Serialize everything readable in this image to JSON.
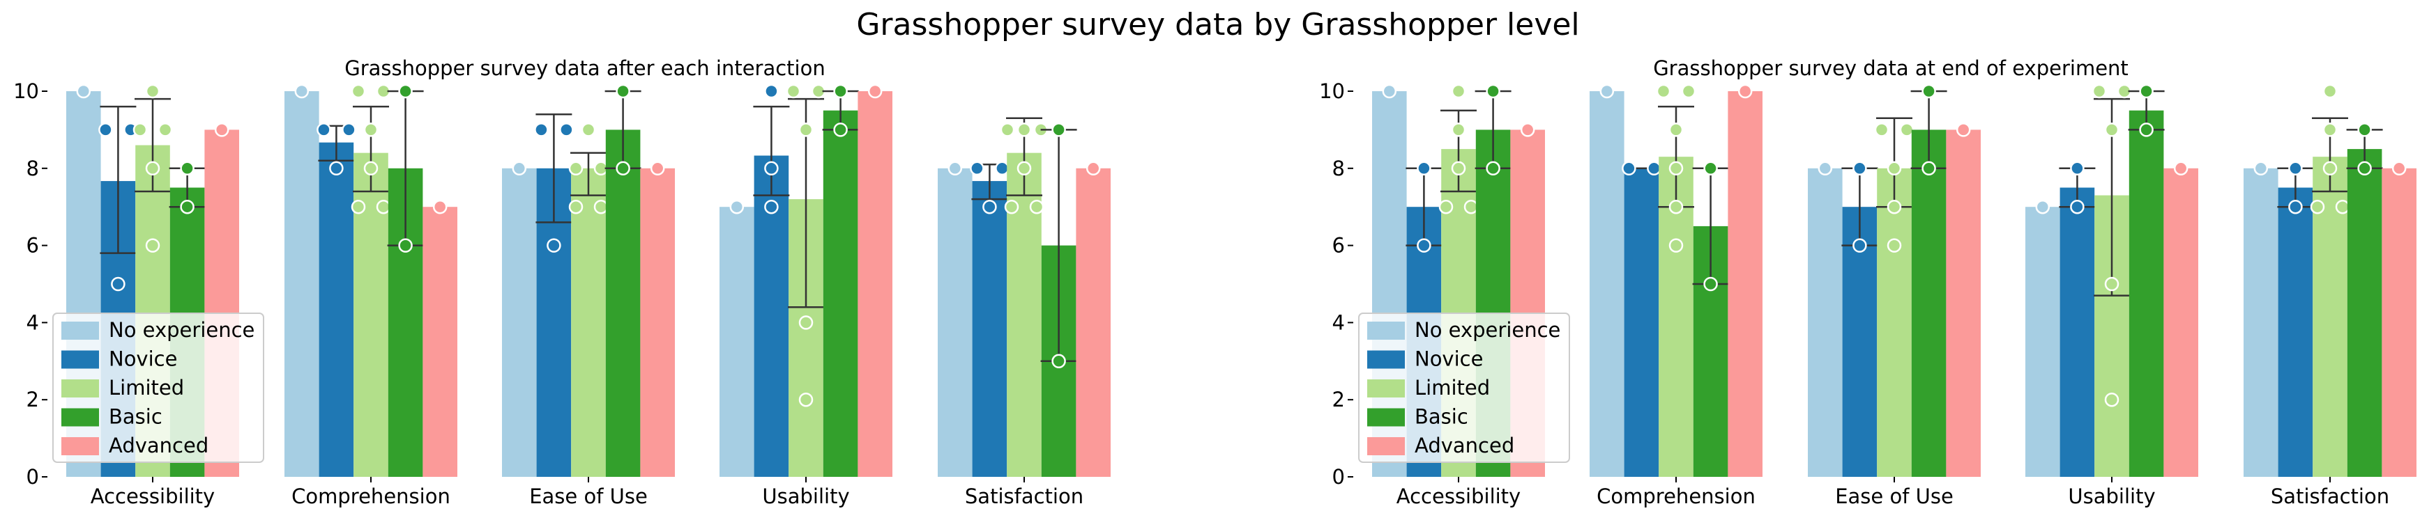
{
  "title": "Grasshopper survey data by Grasshopper level",
  "colors": {
    "No experience": "#a6cee3",
    "Novice": "#1f78b4",
    "Limited": "#b2df8a",
    "Basic": "#33a02c",
    "Advanced": "#fb9a99"
  },
  "chart_data": [
    {
      "type": "bar",
      "title": "Grasshopper survey data after each interaction",
      "categories": [
        "Accessibility",
        "Comprehension",
        "Ease of Use",
        "Usability",
        "Satisfaction"
      ],
      "ylim": [
        0,
        10
      ],
      "yticks": [
        "0",
        "2",
        "4",
        "6",
        "8",
        "10"
      ],
      "legend": "lower-left",
      "grid": false,
      "series": [
        {
          "name": "No experience",
          "values": [
            10,
            10,
            8,
            7,
            8
          ],
          "err": [
            null,
            null,
            null,
            null,
            null
          ],
          "points": [
            [
              10
            ],
            [
              10
            ],
            [
              8
            ],
            [
              7
            ],
            [
              8
            ]
          ]
        },
        {
          "name": "Novice",
          "values": [
            7.67,
            8.67,
            8,
            8.33,
            7.67
          ],
          "err": [
            [
              5.8,
              9.6
            ],
            [
              8.2,
              9.1
            ],
            [
              6.6,
              9.4
            ],
            [
              7.3,
              9.6
            ],
            [
              7.2,
              8.1
            ]
          ],
          "points": [
            [
              9,
              9,
              5
            ],
            [
              9,
              9,
              8
            ],
            [
              9,
              9,
              6
            ],
            [
              10,
              8,
              7
            ],
            [
              8,
              8,
              7
            ]
          ]
        },
        {
          "name": "Limited",
          "values": [
            8.6,
            8.4,
            8,
            7.2,
            8.4
          ],
          "err": [
            [
              7.4,
              9.8
            ],
            [
              7.4,
              9.6
            ],
            [
              7.3,
              8.4
            ],
            [
              4.4,
              9.8
            ],
            [
              7.3,
              9.3
            ]
          ],
          "points": [
            [
              10,
              9,
              9,
              8,
              6
            ],
            [
              10,
              10,
              9,
              8,
              7,
              7
            ],
            [
              9,
              8,
              8,
              7,
              7
            ],
            [
              10,
              10,
              9,
              4,
              2
            ],
            [
              9,
              9,
              9,
              8,
              7,
              7
            ]
          ]
        },
        {
          "name": "Basic",
          "values": [
            7.5,
            8,
            9,
            9.5,
            6
          ],
          "err": [
            [
              7,
              8
            ],
            [
              6,
              10
            ],
            [
              8,
              10
            ],
            [
              9,
              10
            ],
            [
              3,
              9
            ]
          ],
          "points": [
            [
              8,
              7
            ],
            [
              10,
              6
            ],
            [
              10,
              8
            ],
            [
              10,
              9
            ],
            [
              9,
              3
            ]
          ]
        },
        {
          "name": "Advanced",
          "values": [
            9,
            7,
            8,
            10,
            8
          ],
          "err": [
            null,
            null,
            null,
            null,
            null
          ],
          "points": [
            [
              9
            ],
            [
              7
            ],
            [
              8
            ],
            [
              10
            ],
            [
              8
            ]
          ]
        }
      ]
    },
    {
      "type": "bar",
      "title": "Grasshopper survey data at end of experiment",
      "categories": [
        "Accessibility",
        "Comprehension",
        "Ease of Use",
        "Usability",
        "Satisfaction"
      ],
      "ylim": [
        0,
        10
      ],
      "yticks": [
        "0",
        "2",
        "4",
        "6",
        "8",
        "10"
      ],
      "legend": "lower-left",
      "grid": false,
      "series": [
        {
          "name": "No experience",
          "values": [
            10,
            10,
            8,
            7,
            8
          ],
          "err": [
            null,
            null,
            null,
            null,
            null
          ],
          "points": [
            [
              10
            ],
            [
              10
            ],
            [
              8
            ],
            [
              7
            ],
            [
              8
            ]
          ]
        },
        {
          "name": "Novice",
          "values": [
            7,
            8,
            7,
            7.5,
            7.5
          ],
          "err": [
            [
              6,
              8
            ],
            [
              8,
              8
            ],
            [
              6,
              8
            ],
            [
              7,
              8
            ],
            [
              7,
              8
            ]
          ],
          "points": [
            [
              8,
              6
            ],
            [
              8,
              8
            ],
            [
              8,
              6
            ],
            [
              8,
              7
            ],
            [
              8,
              7
            ]
          ]
        },
        {
          "name": "Limited",
          "values": [
            8.5,
            8.3,
            8,
            7.3,
            8.3
          ],
          "err": [
            [
              7.4,
              9.5
            ],
            [
              7,
              9.6
            ],
            [
              7,
              9.3
            ],
            [
              4.7,
              9.8
            ],
            [
              7.4,
              9.3
            ]
          ],
          "points": [
            [
              10,
              9,
              8,
              7,
              7
            ],
            [
              10,
              10,
              9,
              8,
              7,
              6
            ],
            [
              9,
              9,
              8,
              7,
              6
            ],
            [
              10,
              10,
              9,
              5,
              2
            ],
            [
              10,
              9,
              8,
              7,
              7
            ]
          ]
        },
        {
          "name": "Basic",
          "values": [
            9,
            6.5,
            9,
            9.5,
            8.5
          ],
          "err": [
            [
              8,
              10
            ],
            [
              5,
              8
            ],
            [
              8,
              10
            ],
            [
              9,
              10
            ],
            [
              8,
              9
            ]
          ],
          "points": [
            [
              10,
              8
            ],
            [
              8,
              5
            ],
            [
              10,
              8
            ],
            [
              10,
              9
            ],
            [
              9,
              8
            ]
          ]
        },
        {
          "name": "Advanced",
          "values": [
            9,
            10,
            9,
            8,
            8
          ],
          "err": [
            null,
            null,
            null,
            null,
            null
          ],
          "points": [
            [
              9
            ],
            [
              10
            ],
            [
              9
            ],
            [
              8
            ],
            [
              8
            ]
          ]
        }
      ]
    }
  ]
}
